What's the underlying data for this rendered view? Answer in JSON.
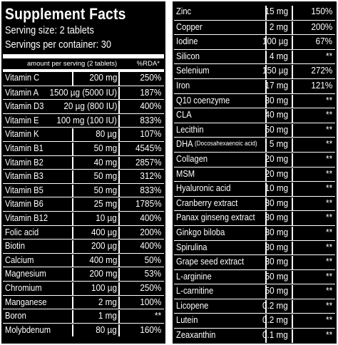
{
  "header": {
    "title": "Supplement Facts",
    "serving_size": "Serving size: 2 tablets",
    "servings_per_container": "Servings per container: 30",
    "col_amount": "amount per serving (2 tablets)",
    "col_rda": "%RDA*"
  },
  "left_rows": [
    {
      "name": "Vitamin C",
      "amount": "200 mg",
      "rda": "250%"
    },
    {
      "name": "Vitamin A",
      "amount": "1500 µg (5000 IU)",
      "rda": "187%"
    },
    {
      "name": "Vitamin D3",
      "amount": "20 µg (800 IU)",
      "rda": "400%"
    },
    {
      "name": "Vitamin E",
      "amount": "100 mg (100 IU)",
      "rda": "833%"
    },
    {
      "name": "Vitamin K",
      "amount": "80 µg",
      "rda": "107%"
    },
    {
      "name": "Vitamin B1",
      "amount": "50 mg",
      "rda": "4545%"
    },
    {
      "name": "Vitamin B2",
      "amount": "40 mg",
      "rda": "2857%"
    },
    {
      "name": "Vitamin B3",
      "amount": "50 mg",
      "rda": "312%"
    },
    {
      "name": "Vitamin B5",
      "amount": "50 mg",
      "rda": "833%"
    },
    {
      "name": "Vitamin B6",
      "amount": "25 mg",
      "rda": "1785%"
    },
    {
      "name": "Vitamin B12",
      "amount": "10 µg",
      "rda": "400%"
    },
    {
      "name": "Folic acid",
      "amount": "400 µg",
      "rda": "200%"
    },
    {
      "name": "Biotin",
      "amount": "200 µg",
      "rda": "400%"
    },
    {
      "name": "Calcium",
      "amount": "400 mg",
      "rda": "50%"
    },
    {
      "name": "Magnesium",
      "amount": "200 mg",
      "rda": "53%"
    },
    {
      "name": "Chromium",
      "amount": "100 µg",
      "rda": "250%"
    },
    {
      "name": "Manganese",
      "amount": "2 mg",
      "rda": "100%"
    },
    {
      "name": "Boron",
      "amount": "1 mg",
      "rda": "**"
    },
    {
      "name": "Molybdenum",
      "amount": "80 µg",
      "rda": "160%"
    }
  ],
  "right_rows": [
    {
      "name": "Zinc",
      "amount": "15 mg",
      "rda": "150%"
    },
    {
      "name": "Copper",
      "amount": "2 mg",
      "rda": "200%"
    },
    {
      "name": "Iodine",
      "amount": "100 µg",
      "rda": "67%"
    },
    {
      "name": "Silicon",
      "amount": "4 mg",
      "rda": "**"
    },
    {
      "name": "Selenium",
      "amount": "150 µg",
      "rda": "272%"
    },
    {
      "name": "Iron",
      "amount": "17 mg",
      "rda": "121%"
    },
    {
      "name": "Q10 coenzyme",
      "amount": "30 mg",
      "rda": "**"
    },
    {
      "name": "CLA",
      "amount": "40 mg",
      "rda": "**"
    },
    {
      "name": "Lecithin",
      "amount": "50 mg",
      "rda": "**"
    },
    {
      "name": "DHA",
      "name_note": "(Docosahexaenoic acid)",
      "amount": "5 mg",
      "rda": "**"
    },
    {
      "name": "Collagen",
      "amount": "20 mg",
      "rda": "**"
    },
    {
      "name": "MSM",
      "amount": "20 mg",
      "rda": "**"
    },
    {
      "name": "Hyaluronic acid",
      "amount": "10 mg",
      "rda": "**"
    },
    {
      "name": "Cranberry extract",
      "amount": "30 mg",
      "rda": "**"
    },
    {
      "name": "Panax ginseng extract",
      "amount": "30 mg",
      "rda": "**"
    },
    {
      "name": "Ginkgo biloba",
      "amount": "30 mg",
      "rda": "**"
    },
    {
      "name": "Spirulina",
      "amount": "30 mg",
      "rda": "**"
    },
    {
      "name": "Grape seed extract",
      "amount": "30 mg",
      "rda": "**"
    },
    {
      "name": "L-arginine",
      "amount": "50 mg",
      "rda": "**"
    },
    {
      "name": "L-carnitine",
      "amount": "50 mg",
      "rda": "**"
    },
    {
      "name": "Licopene",
      "amount": "0.2 mg",
      "rda": "**"
    },
    {
      "name": "Lutein",
      "amount": "0.2 mg",
      "rda": "**"
    },
    {
      "name": "Zeaxanthin",
      "amount": "0.1 mg",
      "rda": "**"
    }
  ]
}
